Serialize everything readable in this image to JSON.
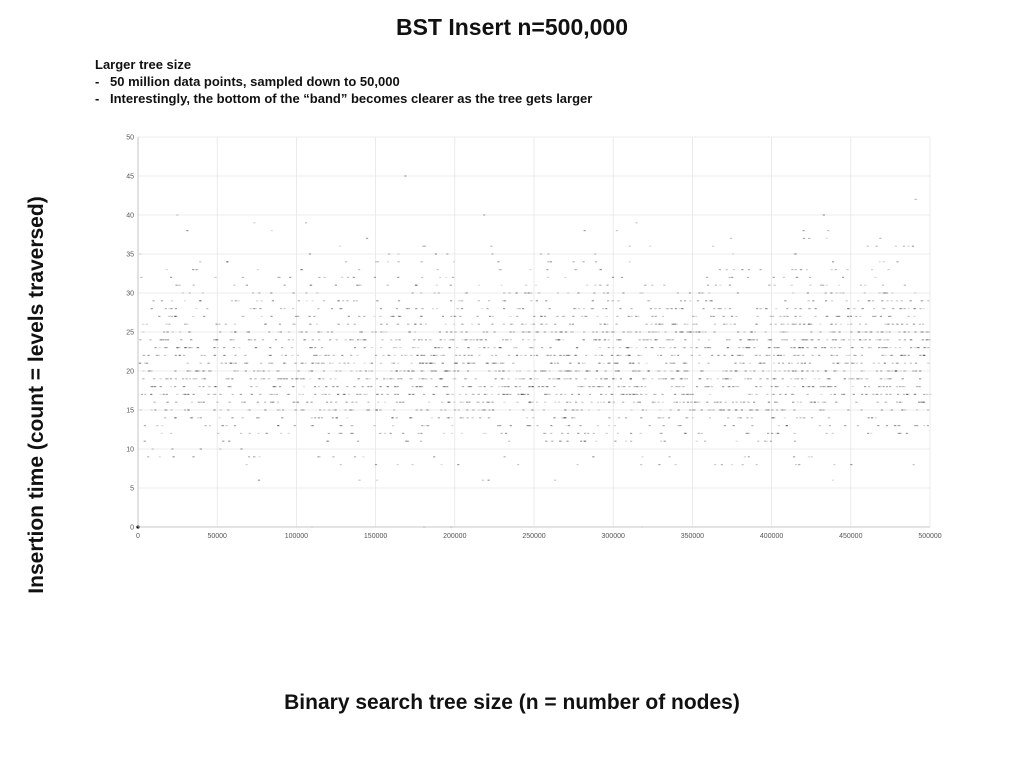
{
  "slide": {
    "title": "BST Insert n=500,000",
    "notes_heading": "Larger tree size",
    "bullets": [
      "50 million data points, sampled down to 50,000",
      "Interestingly, the bottom of the “band” becomes clearer as the tree gets larger"
    ],
    "bullet_mark": "-"
  },
  "chart_data": {
    "type": "scatter",
    "title": "",
    "xlabel": "Binary search tree size (n = number of nodes)",
    "ylabel": "Insertion time (count = levels traversed)",
    "xlim": [
      0,
      500000
    ],
    "ylim": [
      0,
      50
    ],
    "x_ticks": [
      0,
      50000,
      100000,
      150000,
      200000,
      250000,
      300000,
      350000,
      400000,
      450000,
      500000
    ],
    "y_ticks": [
      0,
      5,
      10,
      15,
      20,
      25,
      30,
      35,
      40,
      45,
      50
    ],
    "grid": true,
    "legend": "none",
    "point_color": "#333333",
    "grid_color": "#e6e6e6",
    "points_note_sampled": true,
    "density_profile": {
      "description_levels": [
        {
          "y": 0,
          "weight": 0.2
        },
        {
          "y": 6,
          "weight": 0.3
        },
        {
          "y": 8,
          "weight": 0.6
        },
        {
          "y": 9,
          "weight": 1.0
        },
        {
          "y": 10,
          "weight": 1.8
        },
        {
          "y": 11,
          "weight": 2.6
        },
        {
          "y": 12,
          "weight": 3.4
        },
        {
          "y": 13,
          "weight": 4.2
        },
        {
          "y": 14,
          "weight": 5.0
        },
        {
          "y": 15,
          "weight": 5.8
        },
        {
          "y": 16,
          "weight": 6.6
        },
        {
          "y": 17,
          "weight": 7.2
        },
        {
          "y": 18,
          "weight": 7.6
        },
        {
          "y": 19,
          "weight": 7.8
        },
        {
          "y": 20,
          "weight": 7.8
        },
        {
          "y": 21,
          "weight": 7.6
        },
        {
          "y": 22,
          "weight": 7.2
        },
        {
          "y": 23,
          "weight": 6.6
        },
        {
          "y": 24,
          "weight": 6.0
        },
        {
          "y": 25,
          "weight": 5.2
        },
        {
          "y": 26,
          "weight": 4.4
        },
        {
          "y": 27,
          "weight": 3.6
        },
        {
          "y": 28,
          "weight": 2.9
        },
        {
          "y": 29,
          "weight": 2.2
        },
        {
          "y": 30,
          "weight": 1.7
        },
        {
          "y": 31,
          "weight": 1.3
        },
        {
          "y": 32,
          "weight": 1.0
        },
        {
          "y": 33,
          "weight": 0.8
        },
        {
          "y": 34,
          "weight": 0.6
        },
        {
          "y": 35,
          "weight": 0.45
        },
        {
          "y": 36,
          "weight": 0.3
        },
        {
          "y": 37,
          "weight": 0.2
        },
        {
          "y": 38,
          "weight": 0.12
        },
        {
          "y": 39,
          "weight": 0.08
        },
        {
          "y": 40,
          "weight": 0.05
        },
        {
          "y": 41,
          "weight": 0.03
        },
        {
          "y": 42,
          "weight": 0.02
        },
        {
          "y": 44,
          "weight": 0.01
        }
      ]
    }
  }
}
